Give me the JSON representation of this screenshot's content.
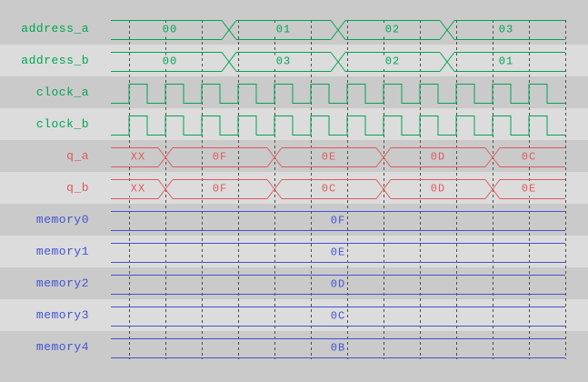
{
  "app": {
    "name": "simulation-waveform-viewer"
  },
  "colors": {
    "green": "#00a651",
    "red": "#df5b5b",
    "blue": "#4254d3",
    "grid": "#4d4d4d",
    "row_dark": "#cacaca",
    "row_light": "#dcdcdc"
  },
  "grid": {
    "first": 20,
    "spacing": 40,
    "count": 13
  },
  "chart_data": {
    "type": "digital-waveform",
    "time_axis": {
      "start": 0,
      "end": 500,
      "gridline_interval": 40
    },
    "signals": [
      {
        "name": "address_a",
        "color": "green",
        "kind": "bus",
        "segments": [
          {
            "value": "00",
            "t0": 0,
            "t1": 130
          },
          {
            "value": "01",
            "t0": 130,
            "t1": 250
          },
          {
            "value": "02",
            "t0": 250,
            "t1": 370
          },
          {
            "value": "03",
            "t0": 370,
            "t1": 500
          }
        ]
      },
      {
        "name": "address_b",
        "color": "green",
        "kind": "bus",
        "segments": [
          {
            "value": "00",
            "t0": 0,
            "t1": 130
          },
          {
            "value": "03",
            "t0": 130,
            "t1": 250
          },
          {
            "value": "02",
            "t0": 250,
            "t1": 370
          },
          {
            "value": "01",
            "t0": 370,
            "t1": 500
          }
        ]
      },
      {
        "name": "clock_a",
        "color": "green",
        "kind": "clock",
        "first_rise": 20,
        "half_period": 20,
        "end": 500,
        "start_level": "low"
      },
      {
        "name": "clock_b",
        "color": "green",
        "kind": "clock",
        "first_rise": 20,
        "half_period": 20,
        "end": 500,
        "start_level": "low"
      },
      {
        "name": "q_a",
        "color": "red",
        "kind": "bus",
        "segments": [
          {
            "value": "XX",
            "t0": 0,
            "t1": 60
          },
          {
            "value": "0F",
            "t0": 60,
            "t1": 180
          },
          {
            "value": "0E",
            "t0": 180,
            "t1": 300
          },
          {
            "value": "0D",
            "t0": 300,
            "t1": 420
          },
          {
            "value": "0C",
            "t0": 420,
            "t1": 500
          }
        ]
      },
      {
        "name": "q_b",
        "color": "red",
        "kind": "bus",
        "segments": [
          {
            "value": "XX",
            "t0": 0,
            "t1": 60
          },
          {
            "value": "0F",
            "t0": 60,
            "t1": 180
          },
          {
            "value": "0C",
            "t0": 180,
            "t1": 300
          },
          {
            "value": "0D",
            "t0": 300,
            "t1": 420
          },
          {
            "value": "0E",
            "t0": 420,
            "t1": 500
          }
        ]
      },
      {
        "name": "memory0",
        "color": "blue",
        "kind": "const",
        "segments": [
          {
            "value": "0F",
            "t0": 0,
            "t1": 500
          }
        ]
      },
      {
        "name": "memory1",
        "color": "blue",
        "kind": "const",
        "segments": [
          {
            "value": "0E",
            "t0": 0,
            "t1": 500
          }
        ]
      },
      {
        "name": "memory2",
        "color": "blue",
        "kind": "const",
        "segments": [
          {
            "value": "0D",
            "t0": 0,
            "t1": 500
          }
        ]
      },
      {
        "name": "memory3",
        "color": "blue",
        "kind": "const",
        "segments": [
          {
            "value": "0C",
            "t0": 0,
            "t1": 500
          }
        ]
      },
      {
        "name": "memory4",
        "color": "blue",
        "kind": "const",
        "segments": [
          {
            "value": "0B",
            "t0": 0,
            "t1": 500
          }
        ]
      }
    ]
  }
}
